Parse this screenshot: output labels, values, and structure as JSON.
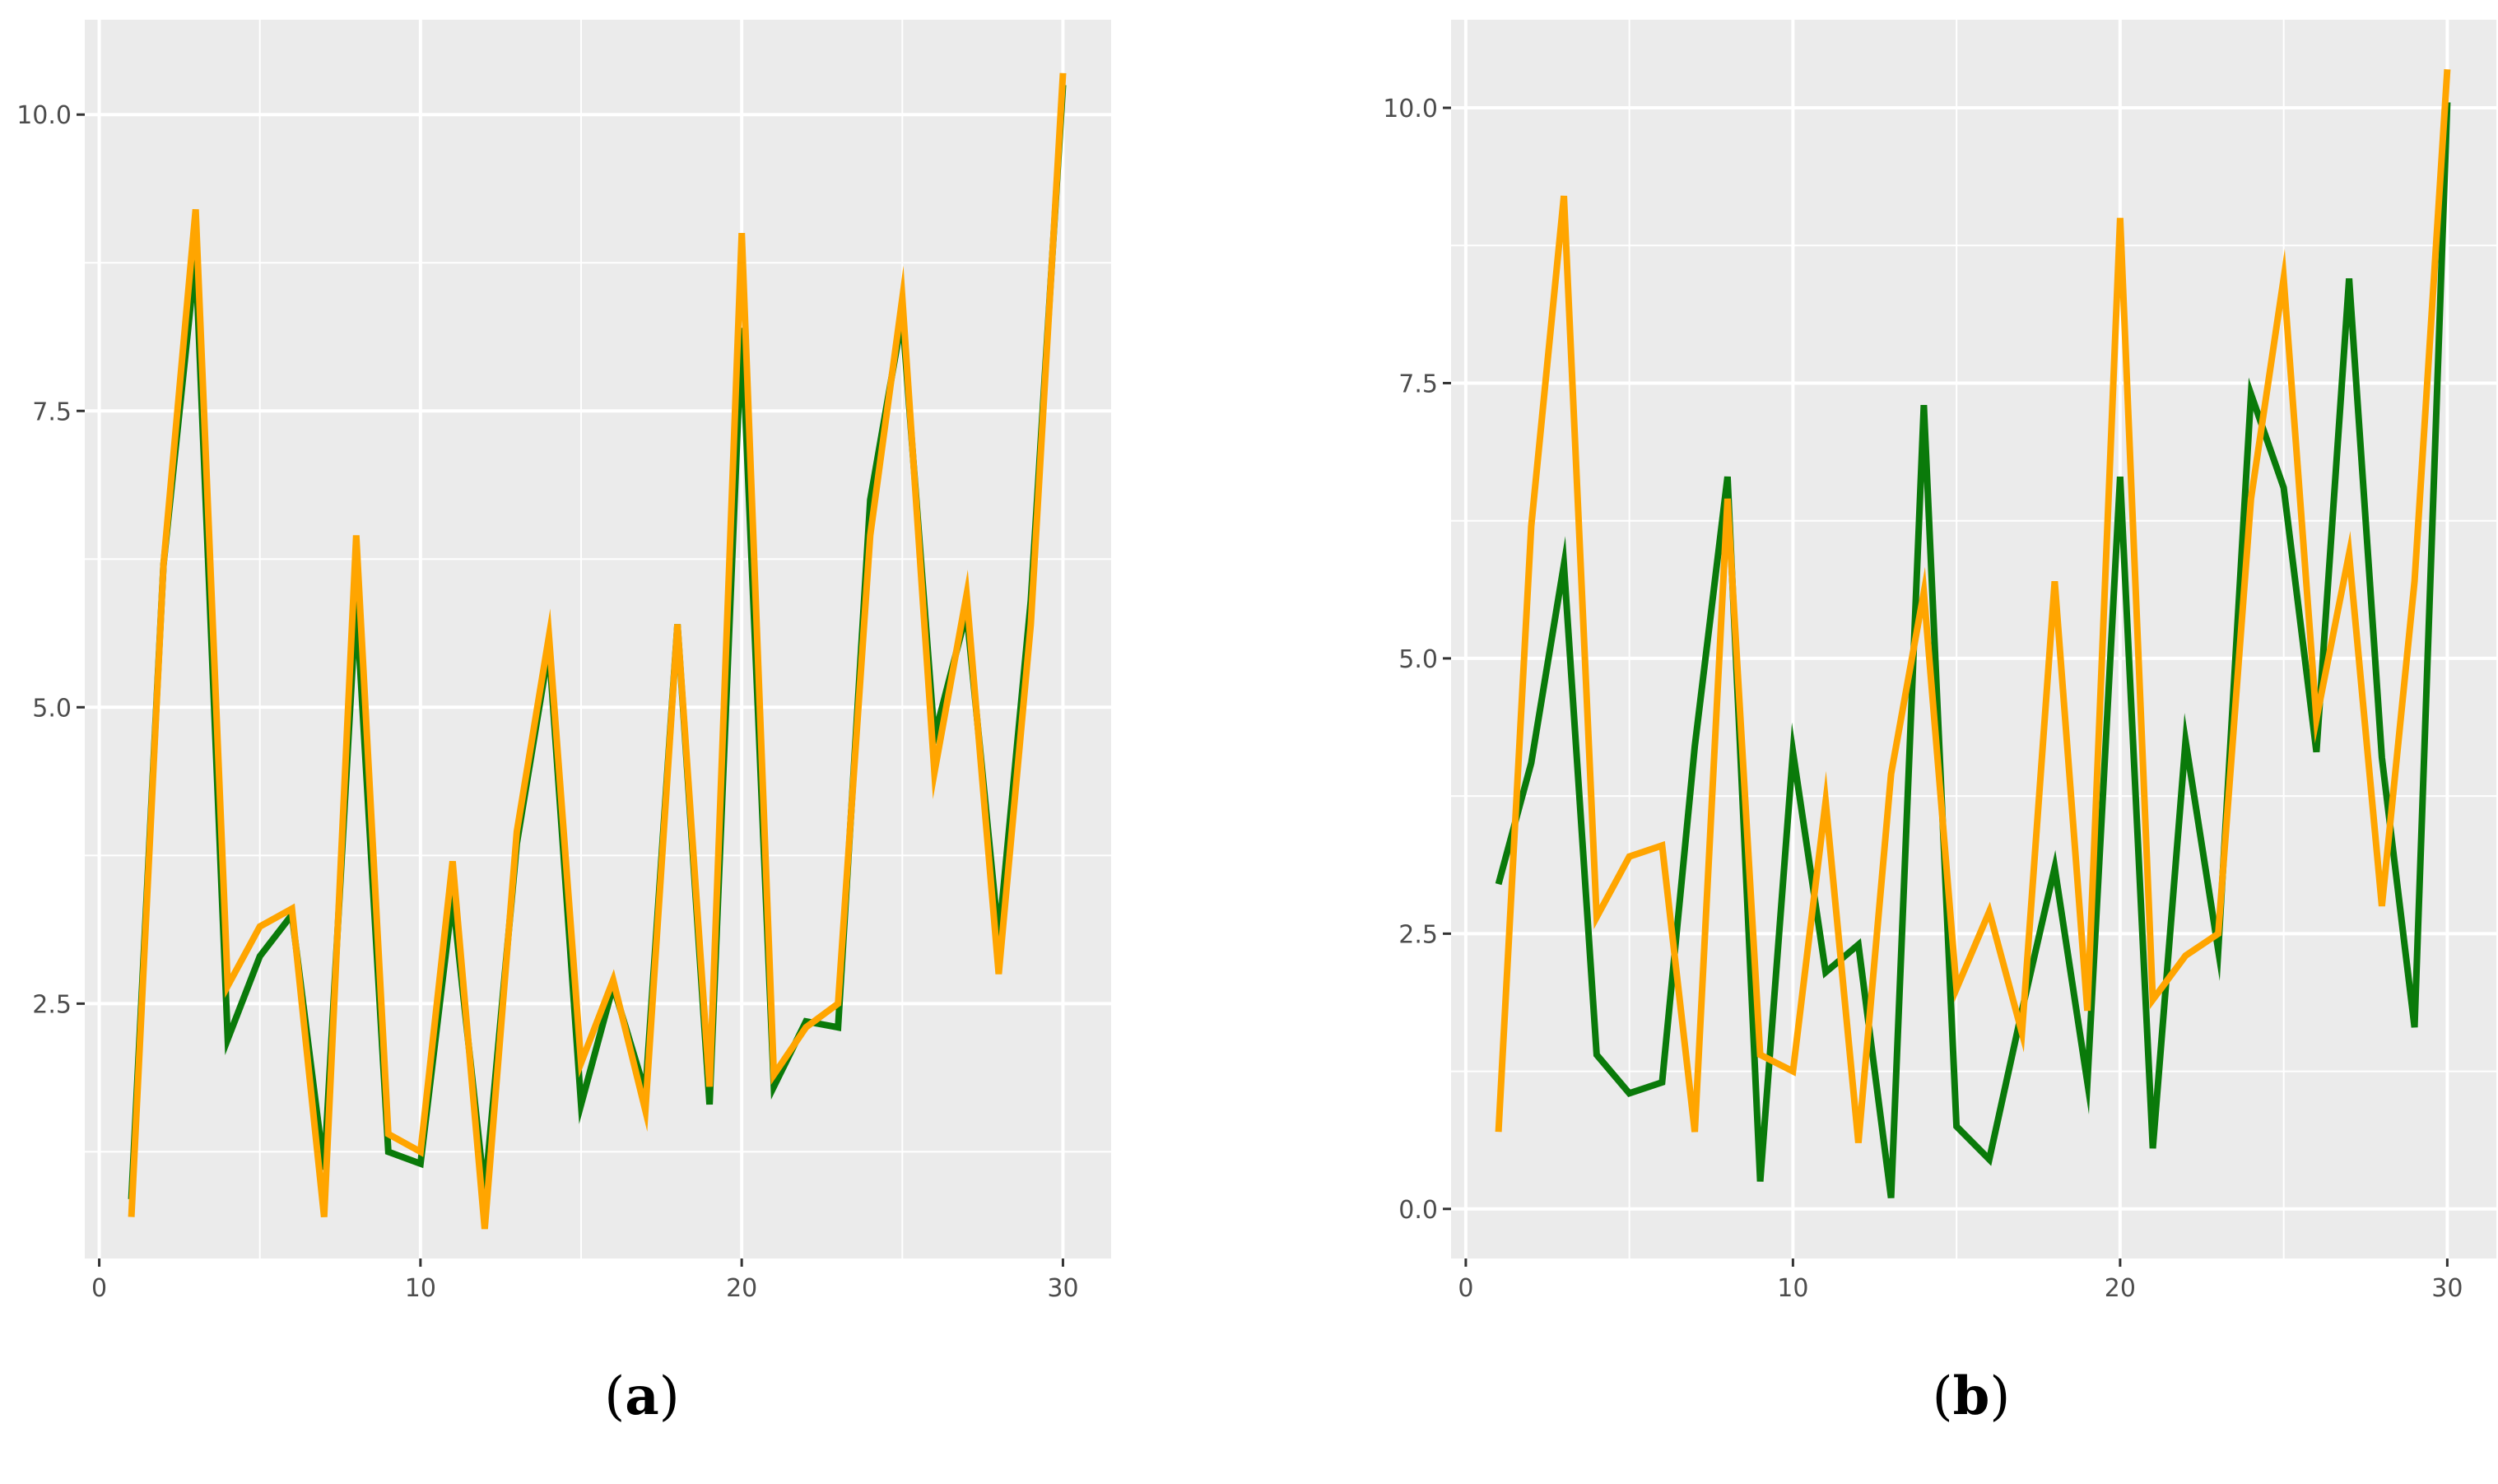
{
  "colors": {
    "panel_background": "#ebebeb",
    "gridline": "#ffffff",
    "series_green": "#0a7a0a",
    "series_orange": "#ffa500",
    "tick_text": "#4d4d4d"
  },
  "chart_data": [
    {
      "type": "line",
      "panel_label": "a",
      "caption": {
        "open": "(",
        "letter": "a",
        "close": ")"
      },
      "xlabel": "",
      "ylabel": "",
      "xlim": [
        -0.45,
        31.5
      ],
      "ylim": [
        0.35,
        10.8
      ],
      "x_ticks": [
        0,
        10,
        20,
        30
      ],
      "x_tick_labels": [
        "0",
        "10",
        "20",
        "30"
      ],
      "y_ticks": [
        2.5,
        5.0,
        7.5,
        10.0
      ],
      "y_tick_labels": [
        "2.5",
        "5.0",
        "7.5",
        "10.0"
      ],
      "grid": true,
      "x": [
        1,
        2,
        3,
        4,
        5,
        6,
        7,
        8,
        9,
        10,
        11,
        12,
        13,
        14,
        15,
        16,
        17,
        18,
        19,
        20,
        21,
        22,
        23,
        24,
        25,
        26,
        27,
        28,
        29,
        30
      ],
      "series": [
        {
          "color": "#0a7a0a",
          "values": [
            0.85,
            6.2,
            8.8,
            2.2,
            2.9,
            3.25,
            1.1,
            5.9,
            1.25,
            1.15,
            3.4,
            0.9,
            3.85,
            5.5,
            1.65,
            2.65,
            1.75,
            5.7,
            1.65,
            8.2,
            1.8,
            2.35,
            2.3,
            6.75,
            8.3,
            4.75,
            5.8,
            3.05,
            5.9,
            10.25
          ]
        },
        {
          "color": "#ffa500",
          "values": [
            0.7,
            6.2,
            9.2,
            2.65,
            3.15,
            3.3,
            0.7,
            6.45,
            1.4,
            1.25,
            3.7,
            0.6,
            3.95,
            5.6,
            2.0,
            2.7,
            1.6,
            5.7,
            1.8,
            9.0,
            1.9,
            2.3,
            2.5,
            6.45,
            8.45,
            4.45,
            5.95,
            2.75,
            5.7,
            10.35
          ]
        }
      ]
    },
    {
      "type": "line",
      "panel_label": "b",
      "caption": {
        "open": "(",
        "letter": "b",
        "close": ")"
      },
      "xlabel": "",
      "ylabel": "",
      "xlim": [
        -0.45,
        31.5
      ],
      "ylim": [
        -0.45,
        10.8
      ],
      "x_ticks": [
        0,
        10,
        20,
        30
      ],
      "x_tick_labels": [
        "0",
        "10",
        "20",
        "30"
      ],
      "y_ticks": [
        0.0,
        2.5,
        5.0,
        7.5,
        10.0
      ],
      "y_tick_labels": [
        "0.0",
        "2.5",
        "5.0",
        "7.5",
        "10.0"
      ],
      "grid": true,
      "x": [
        1,
        2,
        3,
        4,
        5,
        6,
        7,
        8,
        9,
        10,
        11,
        12,
        13,
        14,
        15,
        16,
        17,
        18,
        19,
        20,
        21,
        22,
        23,
        24,
        25,
        26,
        27,
        28,
        29,
        30
      ],
      "series": [
        {
          "color": "#0a7a0a",
          "values": [
            2.95,
            4.05,
            5.85,
            1.4,
            1.05,
            1.15,
            4.2,
            6.65,
            0.25,
            4.15,
            2.15,
            2.4,
            0.1,
            7.3,
            0.75,
            0.45,
            1.8,
            3.1,
            1.15,
            6.65,
            0.55,
            4.25,
            2.35,
            7.4,
            6.55,
            4.15,
            8.45,
            4.1,
            1.65,
            10.05
          ]
        },
        {
          "color": "#ffa500",
          "values": [
            0.7,
            6.2,
            9.2,
            2.65,
            3.2,
            3.3,
            0.7,
            6.45,
            1.4,
            1.25,
            3.7,
            0.6,
            3.95,
            5.6,
            2.0,
            2.7,
            1.6,
            5.7,
            1.8,
            9.0,
            1.9,
            2.3,
            2.5,
            6.45,
            8.45,
            4.45,
            5.95,
            2.75,
            5.7,
            10.35
          ]
        }
      ]
    }
  ]
}
